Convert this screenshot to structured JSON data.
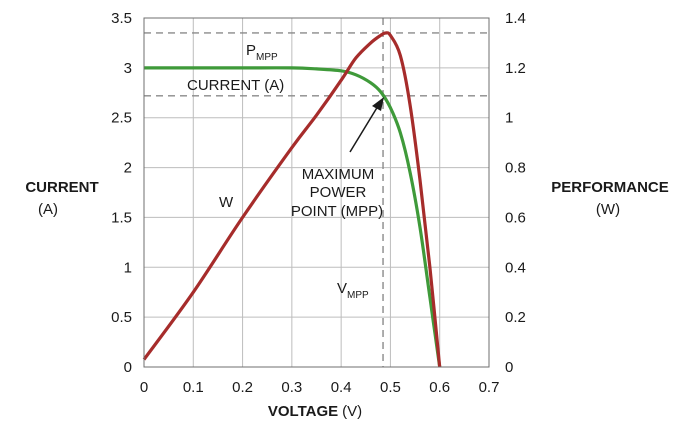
{
  "chart_data": {
    "type": "line",
    "x_axis": {
      "label_bold": "VOLTAGE",
      "label_unit": "(V)",
      "range": [
        0,
        0.7
      ],
      "ticks": [
        "0",
        "0.1",
        "0.2",
        "0.3",
        "0.4",
        "0.5",
        "0.6",
        "0.7"
      ]
    },
    "y_left": {
      "label_bold": "CURRENT",
      "label_unit": "(A)",
      "range": [
        0,
        3.5
      ],
      "ticks": [
        "0",
        "0.5",
        "1",
        "1.5",
        "2",
        "2.5",
        "3",
        "3.5"
      ]
    },
    "y_right": {
      "label_bold": "PERFORMANCE",
      "label_unit": "(W)",
      "range": [
        0,
        1.4
      ],
      "ticks": [
        "0",
        "0.2",
        "0.4",
        "0.6",
        "0.8",
        "1",
        "1.2",
        "1.4"
      ]
    },
    "grid": true,
    "series": [
      {
        "name": "CURRENT (A)",
        "axis": "left",
        "color": "#3f9a3a",
        "x": [
          0,
          0.1,
          0.2,
          0.3,
          0.35,
          0.4,
          0.43,
          0.46,
          0.48,
          0.5,
          0.52,
          0.54,
          0.56,
          0.58,
          0.59,
          0.6
        ],
        "y": [
          3.0,
          3.0,
          3.0,
          3.0,
          2.99,
          2.97,
          2.93,
          2.85,
          2.76,
          2.6,
          2.35,
          1.95,
          1.4,
          0.7,
          0.35,
          0.0
        ]
      },
      {
        "name": "W",
        "axis": "right",
        "color": "#a62c2b",
        "x": [
          0,
          0.1,
          0.2,
          0.3,
          0.35,
          0.4,
          0.43,
          0.46,
          0.48,
          0.49,
          0.5,
          0.52,
          0.54,
          0.56,
          0.58,
          0.6
        ],
        "y": [
          0.03,
          0.3,
          0.6,
          0.88,
          1.01,
          1.15,
          1.24,
          1.3,
          1.33,
          1.34,
          1.33,
          1.25,
          1.05,
          0.75,
          0.4,
          0.0
        ]
      }
    ],
    "reference_lines": {
      "color": "#8a8a8a",
      "pmpp_y_right": 1.34,
      "impp_y_left": 2.72,
      "vmpp_x": 0.485
    },
    "annotations": {
      "pmpp_main": "P",
      "pmpp_sub": "MPP",
      "current_label": "CURRENT (A)",
      "w_label": "W",
      "mpp_line1": "MAXIMUM",
      "mpp_line2": "POWER",
      "mpp_line3": "POINT (MPP)",
      "vmpp_main": "V",
      "vmpp_sub": "MPP"
    }
  }
}
